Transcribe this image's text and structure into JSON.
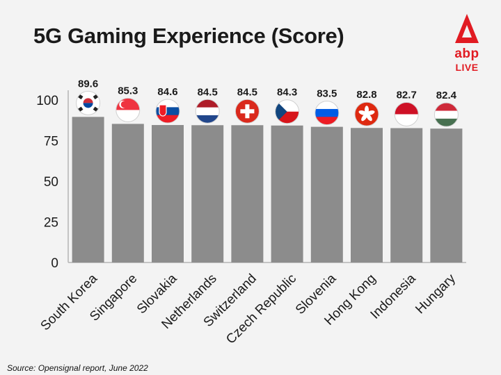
{
  "header": {
    "title": "5G Gaming Experience (Score)"
  },
  "logo": {
    "word": "abp",
    "sub": "LIVE",
    "color": "#e11b22"
  },
  "footer": {
    "source": "Source: Opensignal report, June 2022"
  },
  "chart_data": {
    "type": "bar",
    "title": "5G Gaming Experience (Score)",
    "xlabel": "",
    "ylabel": "",
    "ylim": [
      0,
      100
    ],
    "yticks": [
      0,
      25,
      50,
      75,
      100
    ],
    "grid": false,
    "bar_color": "#8c8c8c",
    "categories": [
      "South Korea",
      "Singapore",
      "Slovakia",
      "Netherlands",
      "Switzerland",
      "Czech Republic",
      "Slovenia",
      "Hong Kong",
      "Indonesia",
      "Hungary"
    ],
    "values": [
      89.6,
      85.3,
      84.6,
      84.5,
      84.5,
      84.3,
      83.5,
      82.8,
      82.7,
      82.4
    ],
    "data_labels": [
      "89.6",
      "85.3",
      "84.6",
      "84.5",
      "84.5",
      "84.3",
      "83.5",
      "82.8",
      "82.7",
      "82.4"
    ],
    "flag_icons": [
      "south-korea-flag-icon",
      "singapore-flag-icon",
      "slovakia-flag-icon",
      "netherlands-flag-icon",
      "switzerland-flag-icon",
      "czech-republic-flag-icon",
      "slovenia-flag-icon",
      "hong-kong-flag-icon",
      "indonesia-flag-icon",
      "hungary-flag-icon"
    ]
  }
}
